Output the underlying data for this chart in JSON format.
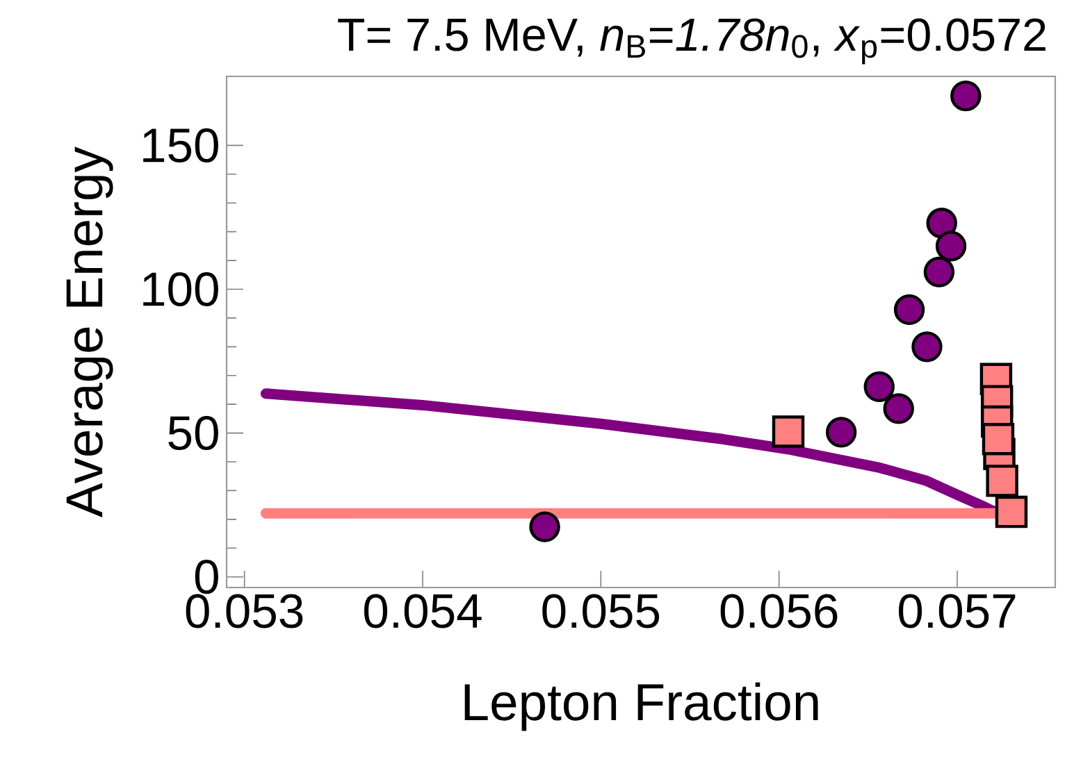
{
  "chart_data": {
    "type": "scatter",
    "title": "T= 7.5 MeV, *n*$_{B}$=*1.78n*$_{0}$, *x*$_{p}$=0.0572",
    "xlabel": "Lepton Fraction",
    "ylabel": "Average Energy",
    "xlim": [
      0.0529,
      0.05755
    ],
    "ylim": [
      -3.7,
      174
    ],
    "xticks": [
      0.053,
      0.054,
      0.055,
      0.056,
      0.057
    ],
    "yticks": [
      0,
      50,
      100,
      150
    ],
    "grid": false,
    "series": [
      {
        "type": "line",
        "color": "#800080",
        "marker": "none",
        "x": [
          0.05312,
          0.054,
          0.055,
          0.055683,
          0.056047,
          0.056567,
          0.056827,
          0.056984,
          0.05714,
          0.057218
        ],
        "values": [
          63.7,
          59.7,
          53.2,
          47.9,
          44.4,
          37.9,
          33.4,
          29.0,
          24.7,
          22.4
        ]
      },
      {
        "type": "line",
        "color": "#ff8080",
        "marker": "none",
        "x": [
          0.05312,
          0.057218
        ],
        "values": [
          22.1,
          22.1
        ]
      },
      {
        "color": "#800080",
        "marker": "circle",
        "x": [
          0.054685,
          0.056349,
          0.056562,
          0.056671,
          0.056731,
          0.05683,
          0.056898,
          0.056913,
          0.056965,
          0.057048
        ],
        "values": [
          17.4,
          50.3,
          66.1,
          58.5,
          92.9,
          80.0,
          106.0,
          123.0,
          115.0,
          167.2
        ]
      },
      {
        "color": "#ff8080",
        "marker": "square",
        "x": [
          0.056052,
          0.057218,
          0.057223,
          0.057223,
          0.057236,
          0.057252,
          0.057304,
          0.05723
        ],
        "values": [
          50.5,
          68.8,
          61.1,
          54.0,
          42.7,
          33.4,
          22.6,
          47.9
        ]
      }
    ]
  }
}
